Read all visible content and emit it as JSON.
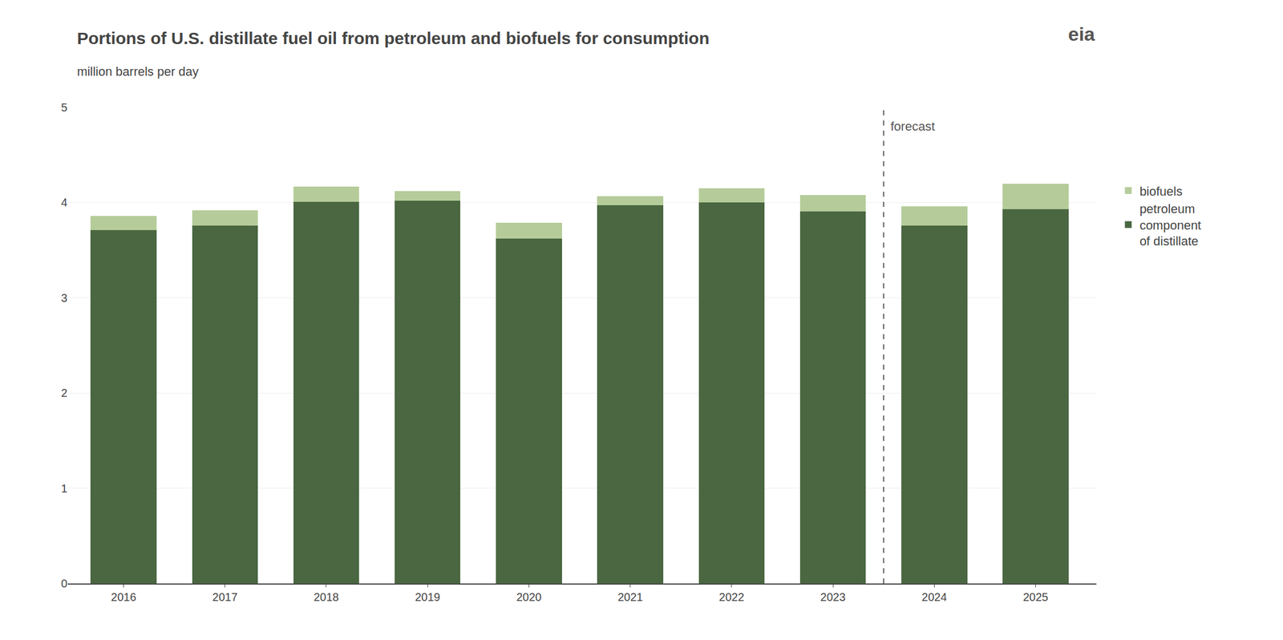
{
  "chart_data": {
    "type": "bar",
    "stacked": true,
    "title": "Portions of U.S. distillate fuel oil from petroleum and biofuels for consumption",
    "subtitle": "million barrels per day",
    "x": [
      2016,
      2017,
      2018,
      2019,
      2020,
      2021,
      2022,
      2023,
      2024,
      2025
    ],
    "series": [
      {
        "name": "petroleum\ncomponent\nof distillate",
        "color": "#4a6741",
        "values": [
          3.71,
          3.76,
          4.01,
          4.02,
          3.62,
          3.97,
          4.0,
          3.91,
          3.76,
          3.93
        ]
      },
      {
        "name": "biofuels",
        "color": "#b5cc9a",
        "values": [
          0.15,
          0.16,
          0.16,
          0.1,
          0.17,
          0.1,
          0.15,
          0.17,
          0.2,
          0.27
        ]
      }
    ],
    "xlim": [
      2015.45,
      2025.6
    ],
    "xticks": [
      2016,
      2017,
      2018,
      2019,
      2020,
      2021,
      2022,
      2023,
      2024,
      2025
    ],
    "ylim": [
      0,
      5
    ],
    "yticks": [
      0,
      1,
      2,
      3,
      4,
      5
    ],
    "grid": true,
    "legend": "right",
    "annotations": [
      {
        "text": "forecast",
        "x": 2023.5,
        "line_style": "dashed",
        "color": "#555555"
      },
      {
        "text": "eia"
      }
    ]
  }
}
